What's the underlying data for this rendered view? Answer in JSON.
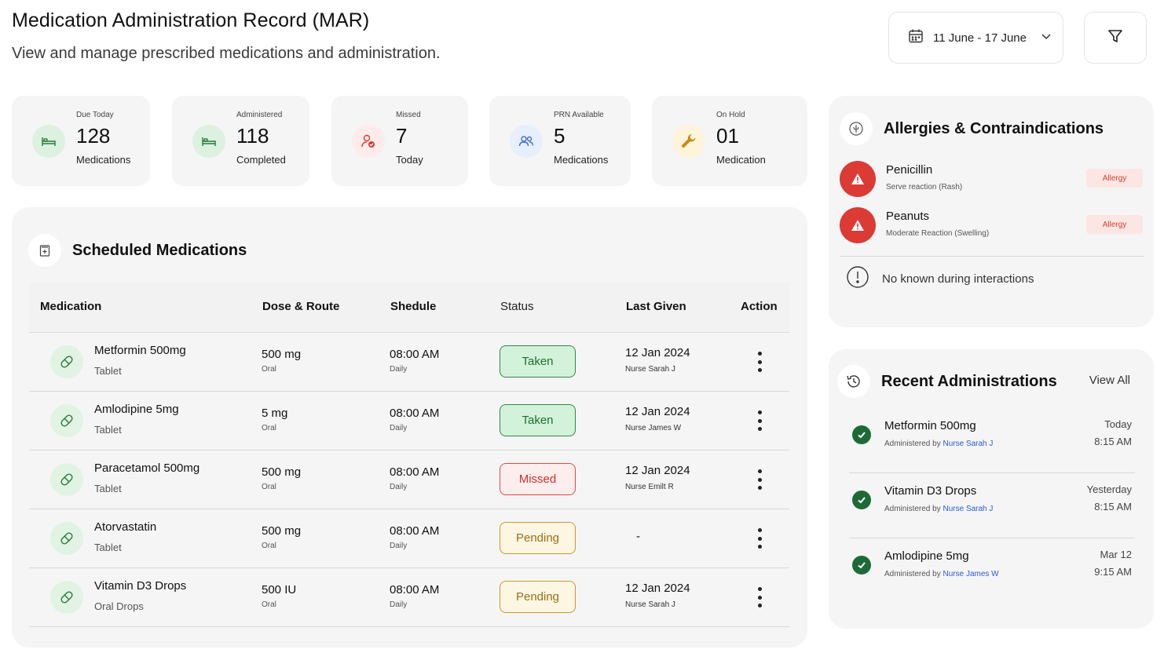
{
  "header": {
    "title": "Medication Administration Record (MAR)",
    "subtitle": "View and manage prescribed medications and administration."
  },
  "toolbar": {
    "date_range": "11 June - 17 June",
    "date_icon": "calendar-icon",
    "filter_icon": "filter-icon"
  },
  "stats": [
    {
      "label": "Due Today",
      "value": "128",
      "sub": "Medications",
      "icon": "bed-icon",
      "icon_bg": "#dcf1df"
    },
    {
      "label": "Administered",
      "value": "118",
      "sub": "Completed",
      "icon": "bed-icon",
      "icon_bg": "#dcf1df"
    },
    {
      "label": "Missed",
      "value": "7",
      "sub": "Today",
      "icon": "user-check-icon",
      "icon_bg": "#fdeceb"
    },
    {
      "label": "PRN Available",
      "value": "5",
      "sub": "Medications",
      "icon": "users-icon",
      "icon_bg": "#e6effb"
    },
    {
      "label": "On Hold",
      "value": "01",
      "sub": "Medication",
      "icon": "wrench-icon",
      "icon_bg": "#fdf4da"
    }
  ],
  "scheduled": {
    "title": "Scheduled Medications",
    "columns": {
      "medication": "Medication",
      "dose": "Dose & Route",
      "schedule": "Shedule",
      "status": "Status",
      "last_given": "Last Given",
      "action": "Action"
    },
    "rows": [
      {
        "name": "Metformin 500mg",
        "form": "Tablet",
        "dose": "500 mg",
        "route": "Oral",
        "time": "08:00 AM",
        "freq": "Daily",
        "status": "Taken",
        "last_date": "12 Jan 2024",
        "last_by": "Nurse Sarah J"
      },
      {
        "name": "Amlodipine 5mg",
        "form": "Tablet",
        "dose": "5 mg",
        "route": "Oral",
        "time": "08:00 AM",
        "freq": "Daily",
        "status": "Taken",
        "last_date": "12 Jan 2024",
        "last_by": "Nurse James W"
      },
      {
        "name": "Paracetamol 500mg",
        "form": "Tablet",
        "dose": "500 mg",
        "route": "Oral",
        "time": "08:00 AM",
        "freq": "Daily",
        "status": "Missed",
        "last_date": "12 Jan 2024",
        "last_by": "Nurse Emilt R"
      },
      {
        "name": "Atorvastatin",
        "form": "Tablet",
        "dose": "500 mg",
        "route": "Oral",
        "time": "08:00 AM",
        "freq": "Daily",
        "status": "Pending",
        "last_date": "-",
        "last_by": ""
      },
      {
        "name": "Vitamin D3 Drops",
        "form": "Oral Drops",
        "dose": "500 IU",
        "route": "Oral",
        "time": "08:00 AM",
        "freq": "Daily",
        "status": "Pending",
        "last_date": "12 Jan 2024",
        "last_by": "Nurse Sarah J"
      }
    ]
  },
  "allergies": {
    "title": "Allergies & Contraindications",
    "items": [
      {
        "name": "Penicillin",
        "desc": "Serve reaction (Rash)",
        "badge": "Allergy"
      },
      {
        "name": "Peanuts",
        "desc": "Moderate Reaction (Swelling)",
        "badge": "Allergy"
      }
    ],
    "note": "No known during interactions"
  },
  "recent": {
    "title": "Recent Administrations",
    "view_all": "View All",
    "by_prefix": "Administered by",
    "items": [
      {
        "name": "Metformin 500mg",
        "nurse": "Nurse Sarah J",
        "day": "Today",
        "time": "8:15 AM"
      },
      {
        "name": "Vitamin D3 Drops",
        "nurse": "Nurse Sarah J",
        "day": "Yesterday",
        "time": "8:15 AM"
      },
      {
        "name": "Amlodipine 5mg",
        "nurse": "Nurse James W",
        "day": "Mar 12",
        "time": "9:15 AM"
      }
    ]
  },
  "colors": {
    "taken": "#2f8a43",
    "missed": "#e04a4a",
    "pending": "#c79a2c",
    "allergy": "#dc3a34",
    "check": "#1e6a36",
    "link": "#2a5bd7"
  }
}
